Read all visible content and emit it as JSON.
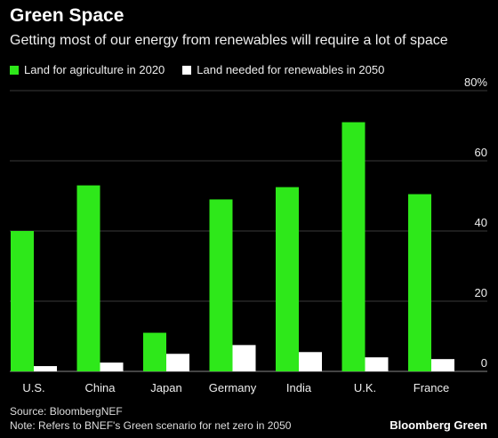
{
  "header": {
    "title": "Green Space",
    "subtitle": "Getting most of our energy from renewables will require a lot of space"
  },
  "legend": {
    "items": [
      {
        "label": "Land for agriculture in 2020",
        "color": "#2ee81a"
      },
      {
        "label": "Land needed for renewables in 2050",
        "color": "#ffffff"
      }
    ]
  },
  "footer": {
    "source": "Source: BloombergNEF",
    "note": "Note: Refers to BNEF's Green scenario for net zero in 2050",
    "brand": "Bloomberg Green"
  },
  "chart_data": {
    "type": "bar",
    "categories": [
      "U.S.",
      "China",
      "Japan",
      "Germany",
      "India",
      "U.K.",
      "France"
    ],
    "series": [
      {
        "name": "Land for agriculture in 2020",
        "color": "#2ee81a",
        "values": [
          40,
          53,
          11,
          49,
          52.5,
          71,
          50.5
        ]
      },
      {
        "name": "Land needed for renewables in 2050",
        "color": "#ffffff",
        "values": [
          1.5,
          2.5,
          5,
          7.5,
          5.5,
          4,
          3.5
        ]
      }
    ],
    "yticks": [
      0,
      20,
      40,
      60,
      80
    ],
    "ytick_labels": [
      "0",
      "20",
      "40",
      "60",
      "80%"
    ],
    "ylim": [
      0,
      80
    ],
    "grid": true
  }
}
